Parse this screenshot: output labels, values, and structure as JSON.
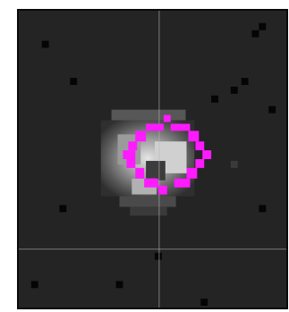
{
  "viewer": {
    "background_color": "#242424",
    "crosshair_color": "#b8b8b8",
    "roi_color": "#ff1aff",
    "border_color": "#0a0a0a",
    "icons": {
      "crosshair": "crosshair-icon",
      "roi": "circle-roi-icon"
    }
  }
}
